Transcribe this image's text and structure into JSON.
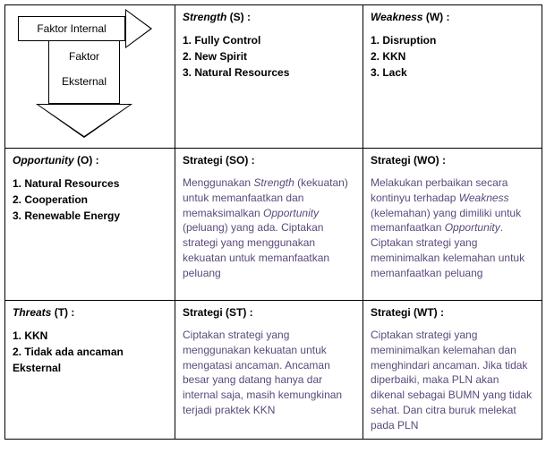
{
  "colors": {
    "border": "#000000",
    "text": "#000000",
    "strategy_text": "#5a4a7a",
    "background": "#ffffff"
  },
  "corner": {
    "internal_label": "Faktor Internal",
    "external_label_line1": "Faktor",
    "external_label_line2": "Eksternal"
  },
  "strength": {
    "title_em": "Strength",
    "title_rest": " (S) :",
    "items": [
      "1. Fully Control",
      "2. New Spirit",
      "3. Natural Resources"
    ]
  },
  "weakness": {
    "title_em": "Weakness",
    "title_rest": " (W) :",
    "items": [
      "1. Disruption",
      "2. KKN",
      "3. Lack"
    ]
  },
  "opportunity": {
    "title_em": "Opportunity",
    "title_rest": " (O) :",
    "items": [
      "1. Natural Resources",
      "2. Cooperation",
      "3. Renewable Energy"
    ]
  },
  "threats": {
    "title_em": "Threats",
    "title_rest": " (T) :",
    "items": [
      "1. KKN",
      "2. Tidak ada ancaman Eksternal"
    ]
  },
  "so": {
    "title": "Strategi (SO) :",
    "body_parts": [
      {
        "t": "Menggunakan "
      },
      {
        "t": "Strength",
        "em": true
      },
      {
        "t": " (kekuatan) untuk memanfaatkan dan memaksimalkan "
      },
      {
        "t": "Opportunity",
        "em": true
      },
      {
        "t": " (peluang) yang ada. Ciptakan strategi yang menggunakan kekuatan untuk memanfaatkan peluang"
      }
    ]
  },
  "wo": {
    "title": "Strategi (WO) :",
    "body_parts": [
      {
        "t": "Melakukan perbaikan secara kontinyu terhadap "
      },
      {
        "t": "Weakness",
        "em": true
      },
      {
        "t": " (kelemahan) yang dimiliki untuk memanfaatkan "
      },
      {
        "t": "Opportunity",
        "em": true
      },
      {
        "t": ". Ciptakan strategi yang meminimalkan kelemahan untuk memanfaatkan peluang"
      }
    ]
  },
  "st": {
    "title": "Strategi (ST) :",
    "body_parts": [
      {
        "t": "Ciptakan strategi yang menggunakan kekuatan untuk mengatasi ancaman. Ancaman besar yang datang hanya dar internal saja, masih kemungkinan terjadi praktek KKN"
      }
    ]
  },
  "wt": {
    "title": "Strategi (WT) :",
    "body_parts": [
      {
        "t": "Ciptakan strategi yang meminimalkan kelemahan dan menghindari ancaman. Jika tidak diperbaiki, maka PLN akan dikenal sebagai BUMN yang tidak sehat. Dan citra buruk melekat pada PLN"
      }
    ]
  }
}
